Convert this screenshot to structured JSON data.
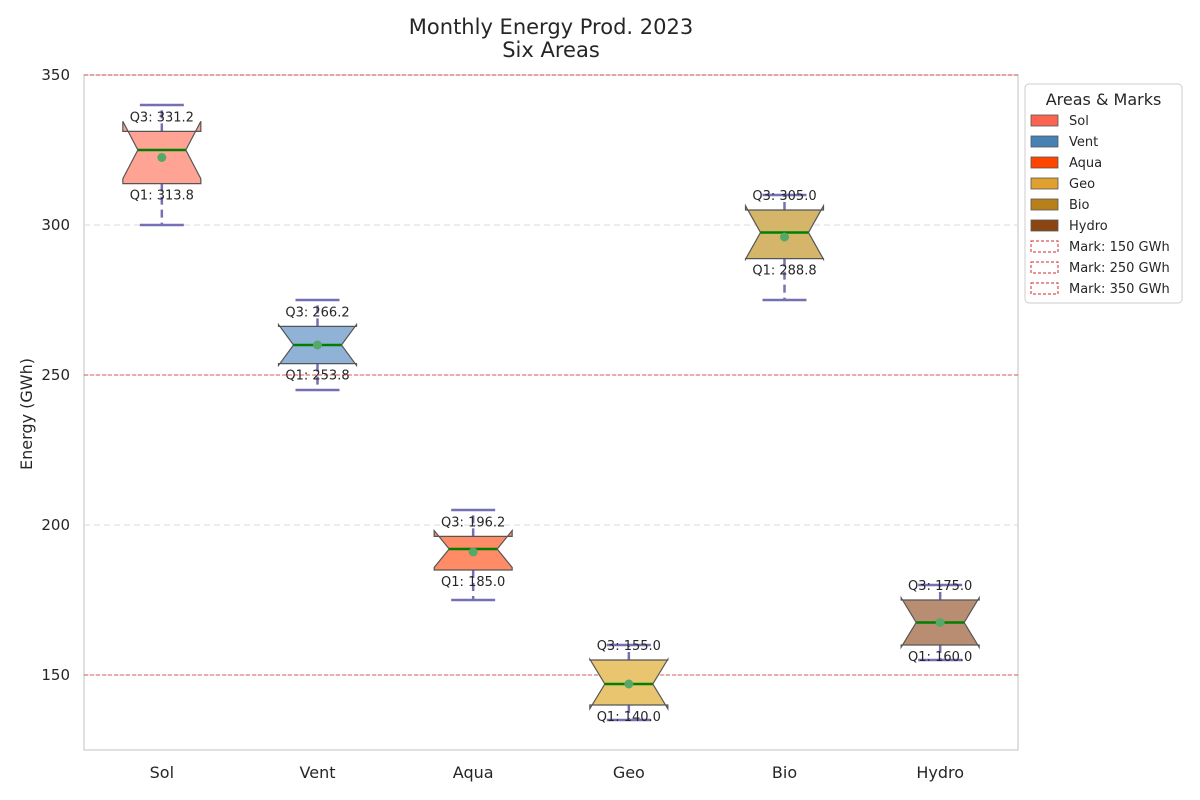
{
  "chart_data": {
    "type": "box",
    "title": "Monthly Energy Prod. 2023",
    "subtitle": "Six Areas",
    "xlabel": "",
    "ylabel": "Energy (GWh)",
    "ylim": [
      125,
      350
    ],
    "yticks": [
      150,
      200,
      250,
      300,
      350
    ],
    "grid": true,
    "legend_title": "Areas & Marks",
    "legend_position": "top-right outside",
    "categories": [
      "Sol",
      "Vent",
      "Aqua",
      "Geo",
      "Bio",
      "Hydro"
    ],
    "boxes": [
      {
        "name": "Sol",
        "whisker_low": 300,
        "q1": 313.8,
        "median": 325,
        "mean": 322.5,
        "q3": 331.2,
        "whisker_high": 340,
        "q1_label": "Q1: 313.8",
        "q3_label": "Q3: 331.2",
        "fill": "#ffa395",
        "legend_color": "#fa6450"
      },
      {
        "name": "Vent",
        "whisker_low": 245,
        "q1": 253.8,
        "median": 260,
        "mean": 260,
        "q3": 266.2,
        "whisker_high": 275,
        "q1_label": "Q1: 253.8",
        "q3_label": "Q3: 266.2",
        "fill": "#8fb2d6",
        "legend_color": "#4682b4"
      },
      {
        "name": "Aqua",
        "whisker_low": 175,
        "q1": 185,
        "median": 192,
        "mean": 191,
        "q3": 196.2,
        "whisker_high": 205,
        "q1_label": "Q1: 185.0",
        "q3_label": "Q3: 196.2",
        "fill": "#ff8c66",
        "legend_color": "#ff4500"
      },
      {
        "name": "Geo",
        "whisker_low": 135,
        "q1": 140,
        "median": 147,
        "mean": 147,
        "q3": 155,
        "whisker_high": 160,
        "q1_label": "Q1: 140.0",
        "q3_label": "Q3: 155.0",
        "fill": "#e8c56e",
        "legend_color": "#e0a030"
      },
      {
        "name": "Bio",
        "whisker_low": 275,
        "q1": 288.8,
        "median": 297.5,
        "mean": 296,
        "q3": 305,
        "whisker_high": 310,
        "q1_label": "Q1: 288.8",
        "q3_label": "Q3: 305.0",
        "fill": "#d4b56a",
        "legend_color": "#b8801a"
      },
      {
        "name": "Hydro",
        "whisker_low": 155,
        "q1": 160,
        "median": 167.5,
        "mean": 167.5,
        "q3": 175,
        "whisker_high": 180,
        "q1_label": "Q1: 160.0",
        "q3_label": "Q3: 175.0",
        "fill": "#b98d72",
        "legend_color": "#8b4513"
      }
    ],
    "reference_lines": [
      {
        "value": 150,
        "label": "Mark: 150 GWh"
      },
      {
        "value": 250,
        "label": "Mark: 250 GWh"
      },
      {
        "value": 350,
        "label": "Mark: 350 GWh"
      }
    ],
    "colors": {
      "whisker": "#7570b3",
      "median": "#008000",
      "mean": "#55a868",
      "reference_line": "#d62728",
      "grid": "#d9d9d9",
      "box_edge": "#555555"
    }
  }
}
